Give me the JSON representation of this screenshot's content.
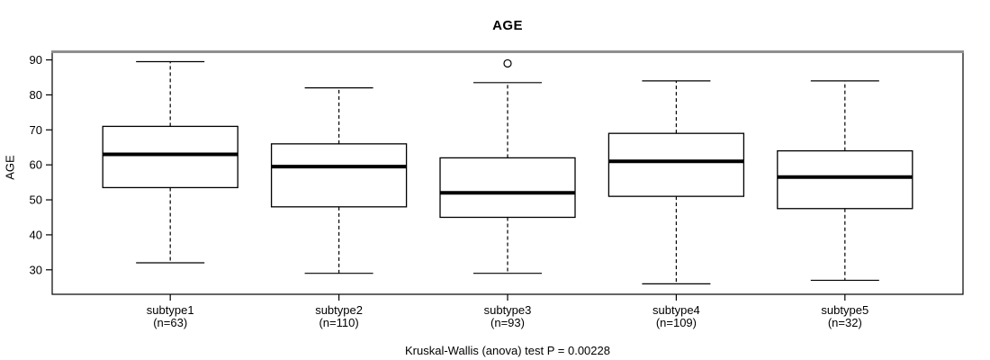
{
  "chart_data": {
    "type": "boxplot",
    "title": "AGE",
    "ylabel": "AGE",
    "xlabel": "",
    "footer": "Kruskal-Wallis (anova) test P = 0.00228",
    "grid": false,
    "legend": false,
    "y_ticks": [
      30,
      40,
      50,
      60,
      70,
      80,
      90
    ],
    "ylim": [
      23.0,
      92.2
    ],
    "categories": [
      "subtype1",
      "subtype2",
      "subtype3",
      "subtype4",
      "subtype5"
    ],
    "sample_sizes": [
      63,
      110,
      93,
      109,
      32
    ],
    "boxes": [
      {
        "category": "subtype1",
        "label2": "(n=63)",
        "n": 63,
        "whisker_low": 32,
        "q1": 53.5,
        "median": 63,
        "q3": 71,
        "whisker_high": 89.5,
        "outliers": []
      },
      {
        "category": "subtype2",
        "label2": "(n=110)",
        "n": 110,
        "whisker_low": 29,
        "q1": 48,
        "median": 59.5,
        "q3": 66,
        "whisker_high": 82,
        "outliers": []
      },
      {
        "category": "subtype3",
        "label2": "(n=93)",
        "n": 93,
        "whisker_low": 29,
        "q1": 45,
        "median": 52,
        "q3": 62,
        "whisker_high": 83.5,
        "outliers": [
          89
        ]
      },
      {
        "category": "subtype4",
        "label2": "(n=109)",
        "n": 109,
        "whisker_low": 26,
        "q1": 51,
        "median": 61,
        "q3": 69,
        "whisker_high": 84,
        "outliers": []
      },
      {
        "category": "subtype5",
        "label2": "(n=32)",
        "n": 32,
        "whisker_low": 27,
        "q1": 47.5,
        "median": 56.5,
        "q3": 64,
        "whisker_high": 84,
        "outliers": []
      }
    ],
    "colors": {
      "stroke": "#000000",
      "box_fill": "#ffffff",
      "background": "#ffffff",
      "frame_top_shadow": "#8f8f8f"
    }
  }
}
